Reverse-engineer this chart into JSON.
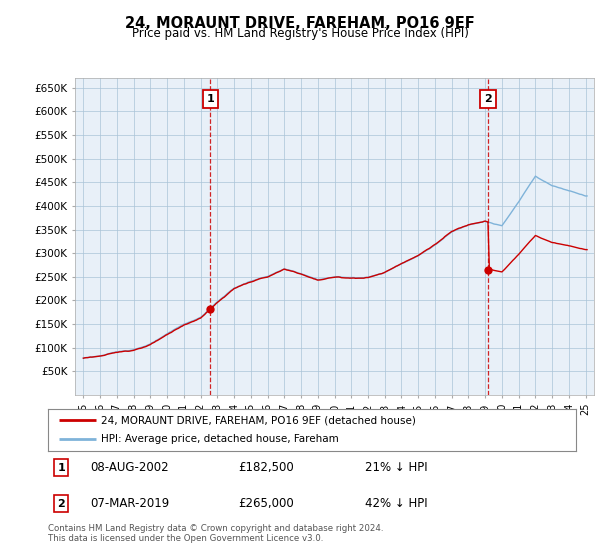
{
  "title": "24, MORAUNT DRIVE, FAREHAM, PO16 9EF",
  "subtitle": "Price paid vs. HM Land Registry's House Price Index (HPI)",
  "ylabel_ticks": [
    "£50K",
    "£100K",
    "£150K",
    "£200K",
    "£250K",
    "£300K",
    "£350K",
    "£400K",
    "£450K",
    "£500K",
    "£550K",
    "£600K",
    "£650K"
  ],
  "ytick_values": [
    50000,
    100000,
    150000,
    200000,
    250000,
    300000,
    350000,
    400000,
    450000,
    500000,
    550000,
    600000,
    650000
  ],
  "xlim_years": [
    1994.5,
    2025.5
  ],
  "ylim": [
    0,
    670000
  ],
  "sale1_year": 2002.58,
  "sale1_price": 182500,
  "sale2_year": 2019.17,
  "sale2_price": 265000,
  "legend_line1": "24, MORAUNT DRIVE, FAREHAM, PO16 9EF (detached house)",
  "legend_line2": "HPI: Average price, detached house, Fareham",
  "footer": "Contains HM Land Registry data © Crown copyright and database right 2024.\nThis data is licensed under the Open Government Licence v3.0.",
  "line_color_price": "#cc0000",
  "line_color_hpi": "#7fb3d9",
  "vline_color": "#cc0000",
  "chart_bg": "#e8f0f8",
  "background_color": "#ffffff",
  "grid_color": "#aac4d8"
}
